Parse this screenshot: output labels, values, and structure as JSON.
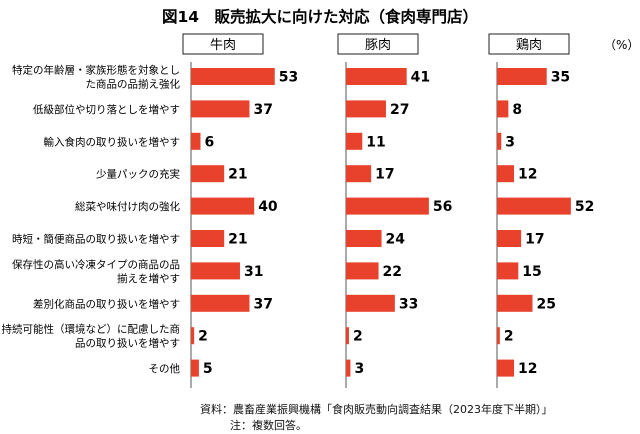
{
  "chart_data": {
    "type": "bar",
    "orientation": "horizontal",
    "title": "図14　販売拡大に向けた対応（食肉専門店）",
    "unit": "（%）",
    "categories": [
      [
        "特定の年齢層・家族形態を対象とし",
        "た商品の品揃え強化"
      ],
      [
        "低級部位や切り落としを増やす"
      ],
      [
        "輸入食肉の取り扱いを増やす"
      ],
      [
        "少量パックの充実"
      ],
      [
        "総菜や味付け肉の強化"
      ],
      [
        "時短・簡便商品の取り扱いを増やす"
      ],
      [
        "保存性の高い冷凍タイプの商品の品",
        "揃えを増やす"
      ],
      [
        "差別化商品の取り扱いを増やす"
      ],
      [
        "持続可能性（環境など）に配慮した商",
        "品の取り扱いを増やす"
      ],
      [
        "その他"
      ]
    ],
    "series": [
      {
        "name": "牛肉",
        "values": [
          53,
          37,
          6,
          21,
          40,
          21,
          31,
          37,
          2,
          5
        ]
      },
      {
        "name": "豚肉",
        "values": [
          41,
          27,
          11,
          17,
          56,
          24,
          22,
          33,
          2,
          3
        ]
      },
      {
        "name": "鶏肉",
        "values": [
          35,
          8,
          3,
          12,
          52,
          17,
          15,
          25,
          2,
          12
        ]
      }
    ],
    "bar_color": "#e8412c",
    "axis_color": "#555555",
    "grid": false
  },
  "notes": {
    "source": "資料：農畜産業振興機構「食肉販売動向調査結果（2023年度下半期）」",
    "note": "注：複数回答。"
  }
}
